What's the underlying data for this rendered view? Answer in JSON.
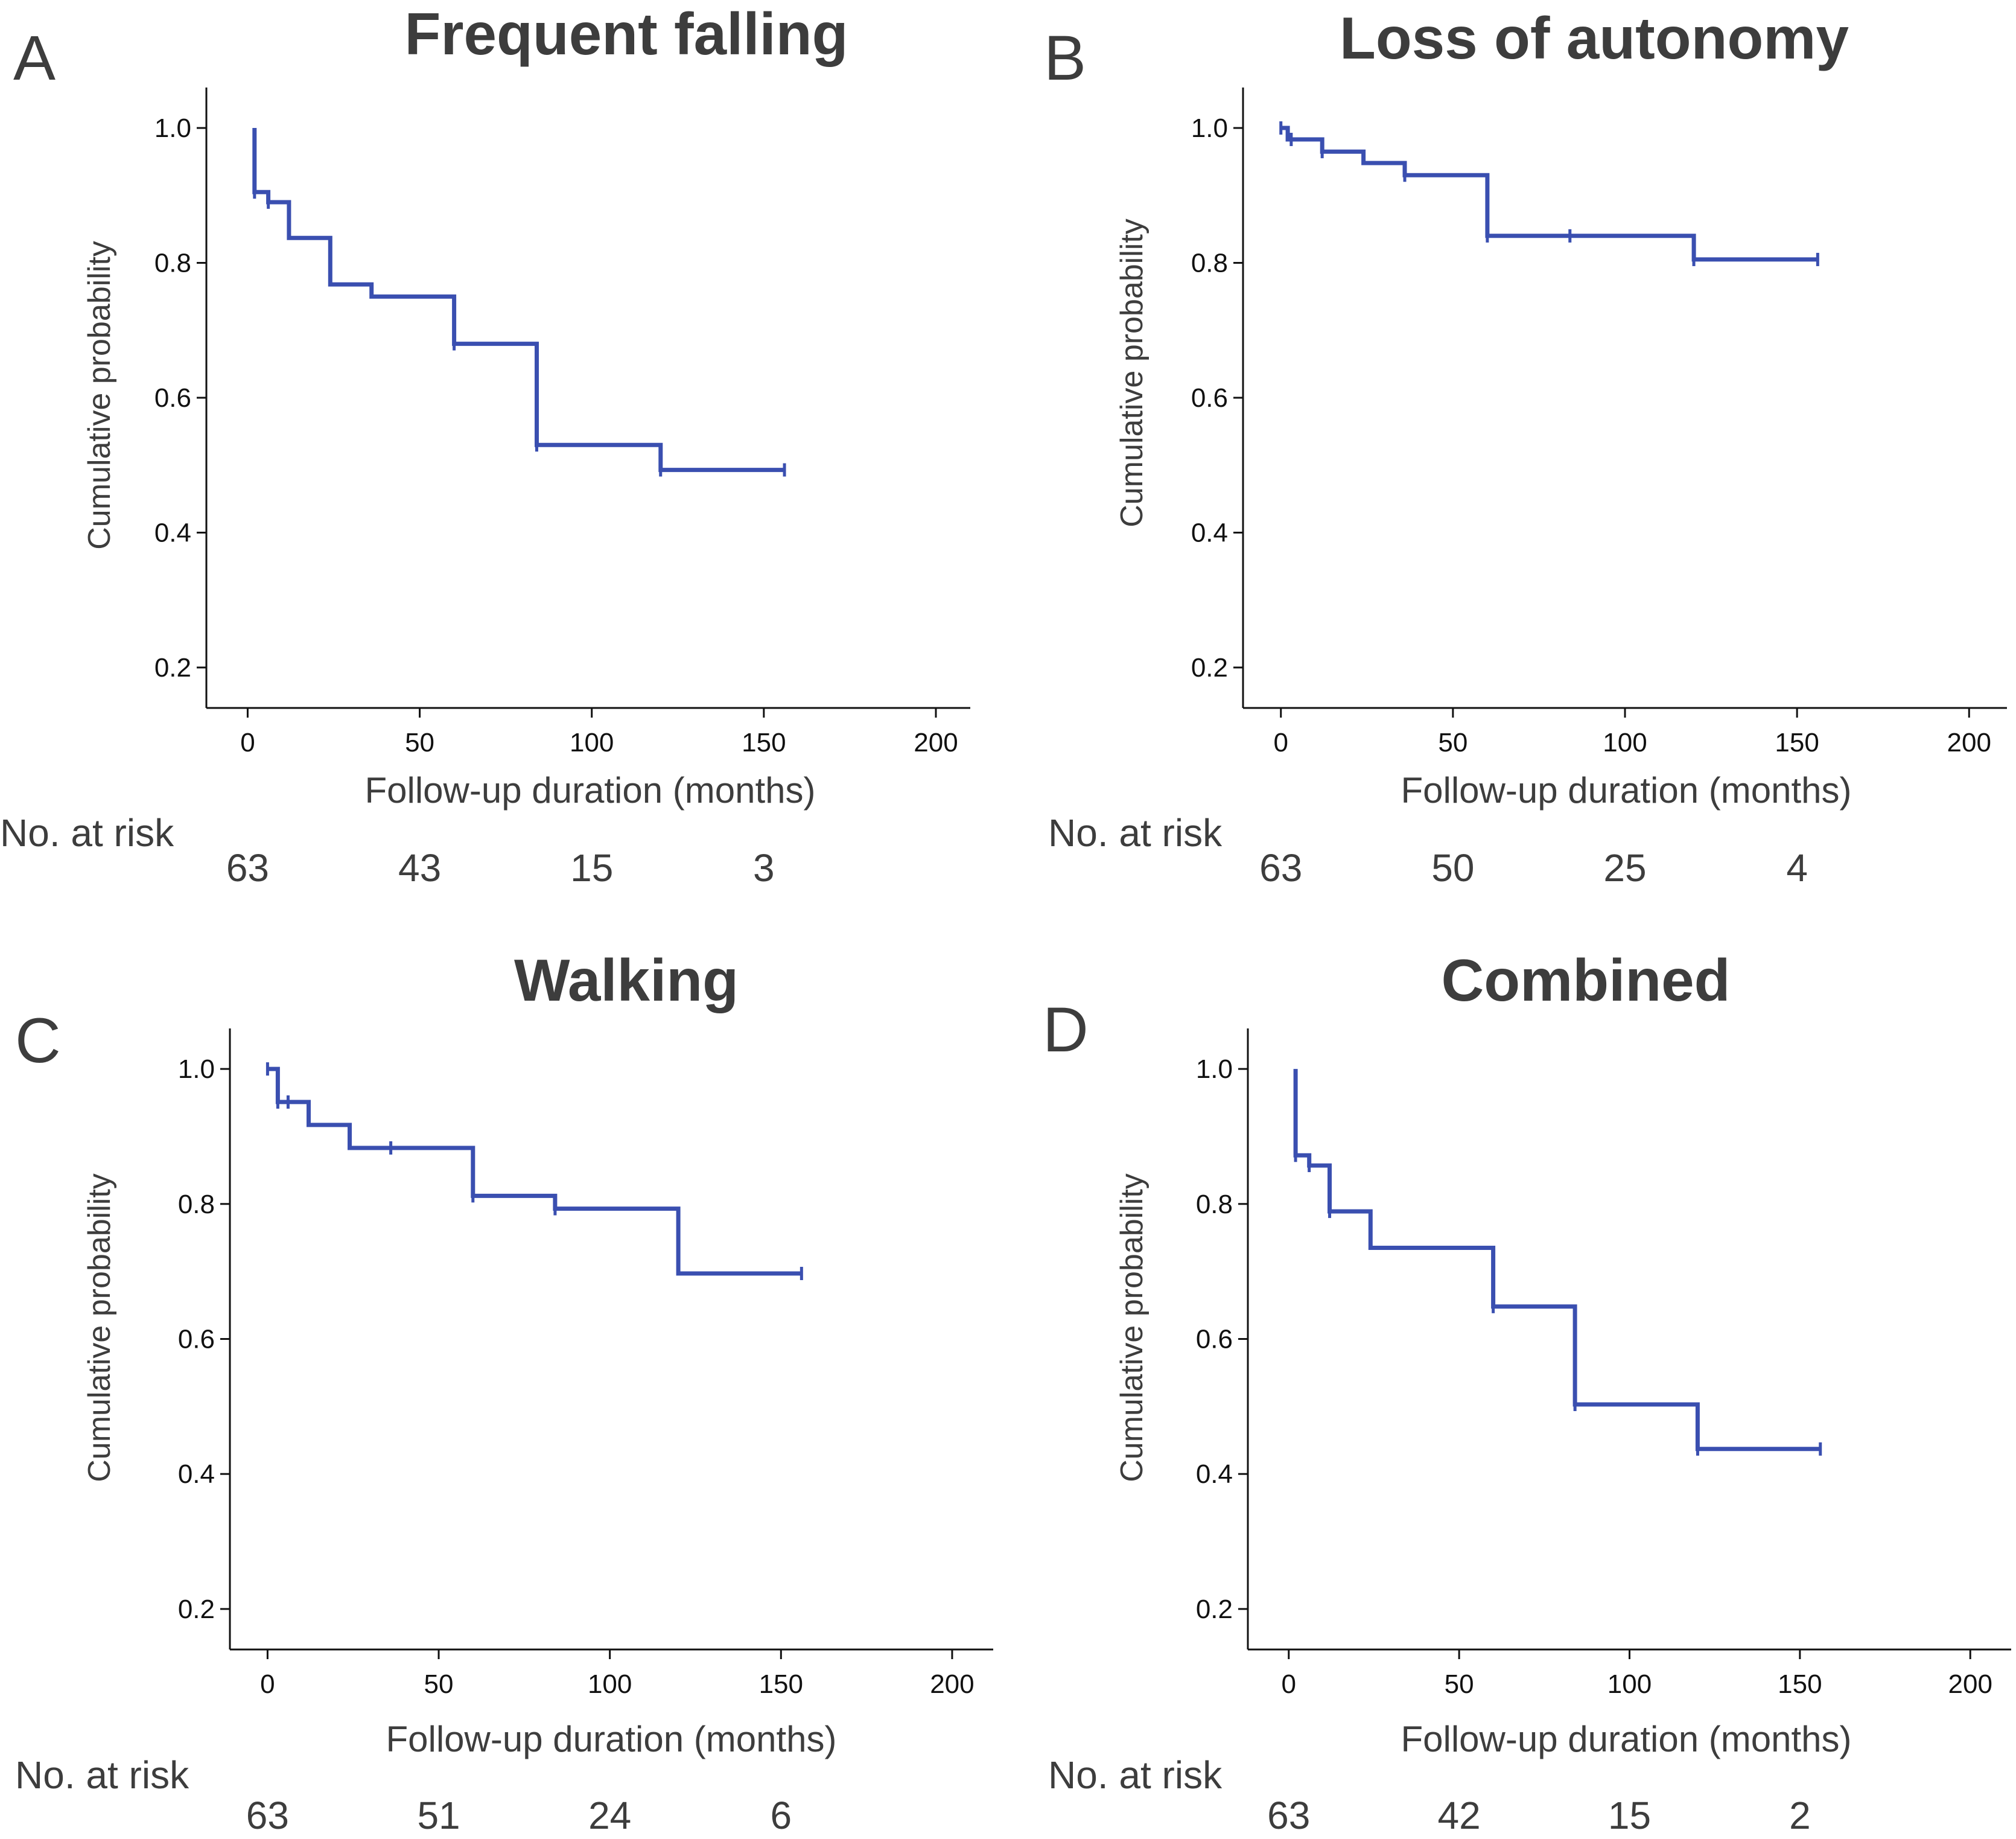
{
  "colors": {
    "curve": "#3a4fb0",
    "axis": "#111111",
    "text": "#3d3d3d"
  },
  "axis_common": {
    "xlabel": "Follow-up duration (months)",
    "ylabel": "Cumulative probability",
    "xticks": [
      "0",
      "50",
      "100",
      "150",
      "200"
    ],
    "yticks": [
      "0.2",
      "0.4",
      "0.6",
      "0.8",
      "1.0"
    ],
    "risk_heading": "No. at risk"
  },
  "chart_data": [
    {
      "type": "line",
      "step": true,
      "letter": "A",
      "title": "Frequent falling",
      "xlim": [
        -12,
        210
      ],
      "ylim": [
        0.14,
        1.06
      ],
      "steps": [
        [
          2,
          1.0
        ],
        [
          2,
          0.905
        ],
        [
          6,
          0.905
        ],
        [
          6,
          0.89
        ],
        [
          12,
          0.89
        ],
        [
          12,
          0.837
        ],
        [
          24,
          0.837
        ],
        [
          24,
          0.768
        ],
        [
          36,
          0.768
        ],
        [
          36,
          0.75
        ],
        [
          60,
          0.75
        ],
        [
          60,
          0.68
        ],
        [
          84,
          0.68
        ],
        [
          84,
          0.53
        ],
        [
          120,
          0.53
        ],
        [
          120,
          0.493
        ],
        [
          156,
          0.493
        ]
      ],
      "censored": [
        [
          2,
          0.905
        ],
        [
          6,
          0.89
        ],
        [
          60,
          0.68
        ],
        [
          84,
          0.53
        ],
        [
          120,
          0.493
        ],
        [
          156,
          0.493
        ]
      ],
      "risk_times": [
        0,
        50,
        100,
        150
      ],
      "at_risk": [
        "63",
        "43",
        "15",
        "3"
      ]
    },
    {
      "type": "line",
      "step": true,
      "letter": "B",
      "title": "Loss of autonomy",
      "xlim": [
        -11,
        211
      ],
      "ylim": [
        0.14,
        1.06
      ],
      "steps": [
        [
          0,
          1.0
        ],
        [
          2,
          1.0
        ],
        [
          2,
          0.983
        ],
        [
          12,
          0.983
        ],
        [
          12,
          0.965
        ],
        [
          24,
          0.965
        ],
        [
          24,
          0.948
        ],
        [
          36,
          0.948
        ],
        [
          36,
          0.93
        ],
        [
          60,
          0.93
        ],
        [
          60,
          0.84
        ],
        [
          84,
          0.84
        ],
        [
          120,
          0.84
        ],
        [
          120,
          0.805
        ],
        [
          156,
          0.805
        ]
      ],
      "censored": [
        [
          0,
          1.0
        ],
        [
          3,
          0.983
        ],
        [
          12,
          0.965
        ],
        [
          36,
          0.93
        ],
        [
          60,
          0.84
        ],
        [
          84,
          0.84
        ],
        [
          120,
          0.805
        ],
        [
          156,
          0.805
        ]
      ],
      "risk_times": [
        0,
        50,
        100,
        150
      ],
      "at_risk": [
        "63",
        "50",
        "25",
        "4"
      ]
    },
    {
      "type": "line",
      "step": true,
      "letter": "C",
      "title": "Walking",
      "xlim": [
        -11,
        212
      ],
      "ylim": [
        0.14,
        1.06
      ],
      "steps": [
        [
          0,
          1.0
        ],
        [
          3,
          1.0
        ],
        [
          3,
          0.951
        ],
        [
          12,
          0.951
        ],
        [
          12,
          0.917
        ],
        [
          24,
          0.917
        ],
        [
          24,
          0.883
        ],
        [
          60,
          0.883
        ],
        [
          60,
          0.812
        ],
        [
          84,
          0.812
        ],
        [
          84,
          0.793
        ],
        [
          120,
          0.793
        ],
        [
          120,
          0.697
        ],
        [
          156,
          0.697
        ]
      ],
      "censored": [
        [
          0,
          1.0
        ],
        [
          3,
          0.951
        ],
        [
          6,
          0.951
        ],
        [
          36,
          0.883
        ],
        [
          60,
          0.812
        ],
        [
          84,
          0.793
        ],
        [
          156,
          0.697
        ]
      ],
      "risk_times": [
        0,
        50,
        100,
        150
      ],
      "at_risk": [
        "63",
        "51",
        "24",
        "6"
      ]
    },
    {
      "type": "line",
      "step": true,
      "letter": "D",
      "title": "Combined",
      "xlim": [
        -12,
        212
      ],
      "ylim": [
        0.14,
        1.06
      ],
      "steps": [
        [
          2,
          1.0
        ],
        [
          2,
          0.872
        ],
        [
          6,
          0.872
        ],
        [
          6,
          0.857
        ],
        [
          12,
          0.857
        ],
        [
          12,
          0.789
        ],
        [
          24,
          0.789
        ],
        [
          24,
          0.735
        ],
        [
          60,
          0.735
        ],
        [
          60,
          0.648
        ],
        [
          84,
          0.648
        ],
        [
          84,
          0.503
        ],
        [
          120,
          0.503
        ],
        [
          120,
          0.437
        ],
        [
          156,
          0.437
        ]
      ],
      "censored": [
        [
          2,
          0.872
        ],
        [
          6,
          0.857
        ],
        [
          12,
          0.789
        ],
        [
          60,
          0.648
        ],
        [
          84,
          0.503
        ],
        [
          120,
          0.437
        ],
        [
          156,
          0.437
        ]
      ],
      "risk_times": [
        0,
        50,
        100,
        150
      ],
      "at_risk": [
        "63",
        "42",
        "15",
        "2"
      ]
    }
  ]
}
